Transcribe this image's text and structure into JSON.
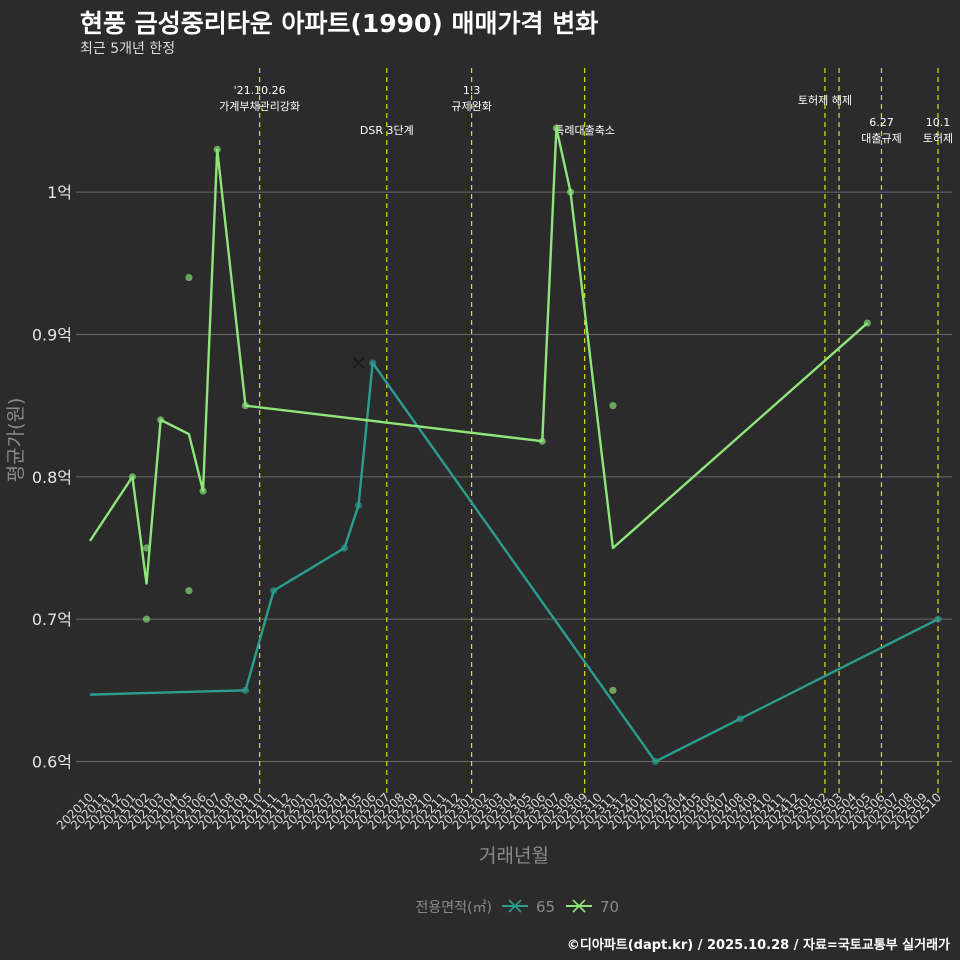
{
  "title": "현풍 금성중리타운 아파트(1990) 매매가격 변화",
  "subtitle": "최근 5개년 한정",
  "caption": "©디아파트(dapt.kr) / 2025.10.28 / 자료=국토교통부 실거래가",
  "chart_data": {
    "type": "line",
    "xlabel": "거래년월",
    "ylabel": "평균가(원)",
    "ylim": [
      0.58,
      1.09
    ],
    "y_ticks": [
      {
        "value": 0.6,
        "label": "0.6억"
      },
      {
        "value": 0.7,
        "label": "0.7억"
      },
      {
        "value": 0.8,
        "label": "0.8억"
      },
      {
        "value": 0.9,
        "label": "0.9억"
      },
      {
        "value": 1.0,
        "label": "1억"
      }
    ],
    "categories": [
      "202010",
      "202011",
      "202012",
      "202101",
      "202102",
      "202103",
      "202104",
      "202105",
      "202106",
      "202107",
      "202108",
      "202109",
      "202110",
      "202111",
      "202112",
      "202201",
      "202202",
      "202203",
      "202204",
      "202205",
      "202206",
      "202207",
      "202208",
      "202209",
      "202210",
      "202211",
      "202212",
      "202301",
      "202302",
      "202303",
      "202304",
      "202305",
      "202306",
      "202307",
      "202308",
      "202309",
      "202310",
      "202311",
      "202312",
      "202401",
      "202402",
      "202403",
      "202404",
      "202405",
      "202406",
      "202407",
      "202408",
      "202409",
      "202410",
      "202411",
      "202412",
      "202501",
      "202502",
      "202503",
      "202504",
      "202505",
      "202506",
      "202507",
      "202508",
      "202509",
      "202510"
    ],
    "legend_title": "전용면적(㎡)",
    "series": [
      {
        "name": "65",
        "color": "#2a9d8f",
        "line": [
          [
            "202010",
            0.647
          ],
          [
            "202109",
            0.65
          ],
          [
            "202111",
            0.72
          ],
          [
            "202204",
            0.75
          ],
          [
            "202205",
            0.78
          ],
          [
            "202206",
            0.88
          ],
          [
            "202402",
            0.6
          ],
          [
            "202408",
            0.63
          ],
          [
            "202510",
            0.7
          ]
        ],
        "points": [
          [
            "202109",
            0.65
          ],
          [
            "202111",
            0.72
          ],
          [
            "202204",
            0.75
          ],
          [
            "202205",
            0.78
          ],
          [
            "202206",
            0.88
          ],
          [
            "202402",
            0.6
          ],
          [
            "202408",
            0.63
          ],
          [
            "202510",
            0.7
          ]
        ],
        "cross": [
          [
            "202205",
            0.88
          ]
        ]
      },
      {
        "name": "70",
        "color": "#8ee57a",
        "line": [
          [
            "202010",
            0.755
          ],
          [
            "202101",
            0.8
          ],
          [
            "202102",
            0.725
          ],
          [
            "202103",
            0.84
          ],
          [
            "202105",
            0.83
          ],
          [
            "202106",
            0.79
          ],
          [
            "202107",
            1.03
          ],
          [
            "202109",
            0.85
          ],
          [
            "202306",
            0.825
          ],
          [
            "202307",
            1.045
          ],
          [
            "202308",
            1.0
          ],
          [
            "202311",
            0.75
          ],
          [
            "202505",
            0.908
          ]
        ],
        "points": [
          [
            "202101",
            0.8
          ],
          [
            "202102",
            0.75
          ],
          [
            "202102",
            0.7
          ],
          [
            "202103",
            0.84
          ],
          [
            "202105",
            0.94
          ],
          [
            "202105",
            0.72
          ],
          [
            "202106",
            0.79
          ],
          [
            "202107",
            1.03
          ],
          [
            "202109",
            0.85
          ],
          [
            "202306",
            0.825
          ],
          [
            "202307",
            1.045
          ],
          [
            "202308",
            1.0
          ],
          [
            "202311",
            0.85
          ],
          [
            "202311",
            0.65
          ],
          [
            "202505",
            0.908
          ]
        ]
      }
    ],
    "events": [
      {
        "x": "202110",
        "lines": [
          "'21.10.26",
          "가계부채관리강화"
        ]
      },
      {
        "x": "202207",
        "lines": [
          "DSR 3단계"
        ]
      },
      {
        "x": "202301",
        "lines": [
          "1.3",
          "규제완화"
        ]
      },
      {
        "x": "202309",
        "lines": [
          "특례대출축소"
        ]
      },
      {
        "x": "202502",
        "lines": [
          "토허제 해제"
        ]
      },
      {
        "x": "202503",
        "lines": []
      },
      {
        "x": "202506",
        "lines": [
          "6.27",
          "대출규제"
        ]
      },
      {
        "x": "202510",
        "lines": [
          "10.1",
          "토허제"
        ]
      }
    ]
  }
}
